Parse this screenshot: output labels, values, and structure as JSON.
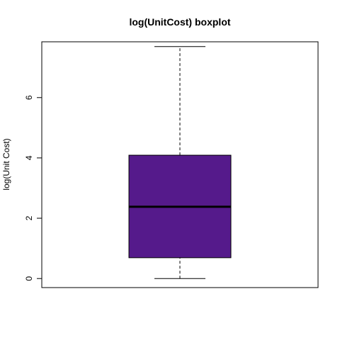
{
  "chart_data": {
    "type": "boxplot",
    "title": "log(UnitCost) boxplot",
    "xlabel": "",
    "ylabel": "log(Unit Cost)",
    "ylim": [
      -0.3,
      7.85
    ],
    "yticks": [
      0,
      2,
      4,
      6
    ],
    "ytick_labels": [
      "0",
      "2",
      "4",
      "6"
    ],
    "grid": false,
    "box": {
      "min": 0.0,
      "q1": 0.69,
      "median": 2.38,
      "q3": 4.09,
      "max": 7.69,
      "fill_color": "#551A8B",
      "line_color": "#000000"
    }
  }
}
